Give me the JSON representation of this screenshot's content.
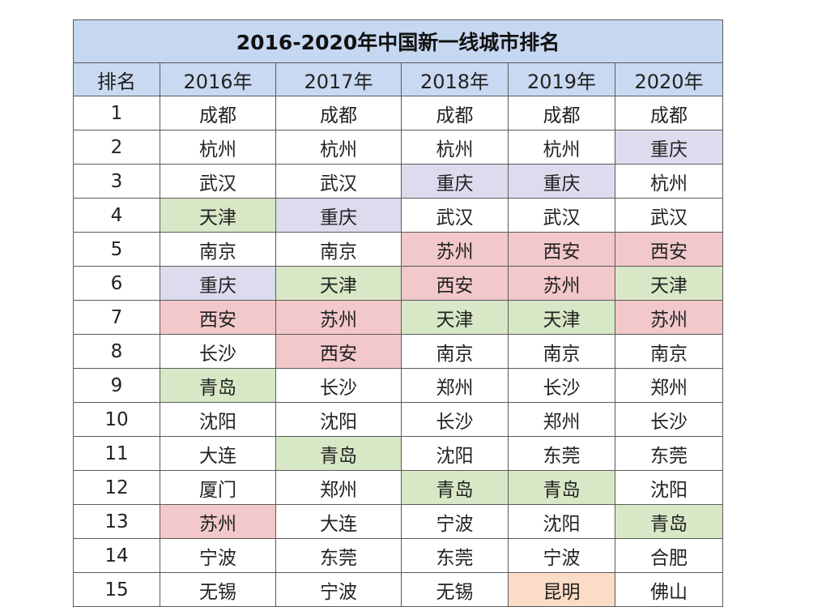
{
  "title": "2016-2020年中国新一线城市排名",
  "headers": [
    "排名",
    "2016年",
    "2017年",
    "2018年",
    "2019年",
    "2020年"
  ],
  "colors": {
    "green": "#d8e8c6",
    "purple": "#dcdcee",
    "red": "#f2c8cb",
    "peach": "#fbdcc6",
    "header_bg": "#c9d9f1",
    "title_bg": "#c6d7f1"
  },
  "rows": [
    {
      "rank": "1",
      "cities": [
        "成都",
        "成都",
        "成都",
        "成都",
        "成都"
      ],
      "hl": [
        "",
        "",
        "",
        "",
        ""
      ]
    },
    {
      "rank": "2",
      "cities": [
        "杭州",
        "杭州",
        "杭州",
        "杭州",
        "重庆"
      ],
      "hl": [
        "",
        "",
        "",
        "",
        "purple"
      ]
    },
    {
      "rank": "3",
      "cities": [
        "武汉",
        "武汉",
        "重庆",
        "重庆",
        "杭州"
      ],
      "hl": [
        "",
        "",
        "purple",
        "purple",
        ""
      ]
    },
    {
      "rank": "4",
      "cities": [
        "天津",
        "重庆",
        "武汉",
        "武汉",
        "武汉"
      ],
      "hl": [
        "green",
        "purple",
        "",
        "",
        ""
      ]
    },
    {
      "rank": "5",
      "cities": [
        "南京",
        "南京",
        "苏州",
        "西安",
        "西安"
      ],
      "hl": [
        "",
        "",
        "red",
        "red",
        "red"
      ]
    },
    {
      "rank": "6",
      "cities": [
        "重庆",
        "天津",
        "西安",
        "苏州",
        "天津"
      ],
      "hl": [
        "purple",
        "green",
        "red",
        "red",
        "green"
      ]
    },
    {
      "rank": "7",
      "cities": [
        "西安",
        "苏州",
        "天津",
        "天津",
        "苏州"
      ],
      "hl": [
        "red",
        "red",
        "green",
        "green",
        "red"
      ]
    },
    {
      "rank": "8",
      "cities": [
        "长沙",
        "西安",
        "南京",
        "南京",
        "南京"
      ],
      "hl": [
        "",
        "red",
        "",
        "",
        ""
      ]
    },
    {
      "rank": "9",
      "cities": [
        "青岛",
        "长沙",
        "郑州",
        "长沙",
        "郑州"
      ],
      "hl": [
        "green",
        "",
        "",
        "",
        ""
      ]
    },
    {
      "rank": "10",
      "cities": [
        "沈阳",
        "沈阳",
        "长沙",
        "郑州",
        "长沙"
      ],
      "hl": [
        "",
        "",
        "",
        "",
        ""
      ]
    },
    {
      "rank": "11",
      "cities": [
        "大连",
        "青岛",
        "沈阳",
        "东莞",
        "东莞"
      ],
      "hl": [
        "",
        "green",
        "",
        "",
        ""
      ]
    },
    {
      "rank": "12",
      "cities": [
        "厦门",
        "郑州",
        "青岛",
        "青岛",
        "沈阳"
      ],
      "hl": [
        "",
        "",
        "green",
        "green",
        ""
      ]
    },
    {
      "rank": "13",
      "cities": [
        "苏州",
        "大连",
        "宁波",
        "沈阳",
        "青岛"
      ],
      "hl": [
        "red",
        "",
        "",
        "",
        "green"
      ]
    },
    {
      "rank": "14",
      "cities": [
        "宁波",
        "东莞",
        "东莞",
        "宁波",
        "合肥"
      ],
      "hl": [
        "",
        "",
        "",
        "",
        ""
      ]
    },
    {
      "rank": "15",
      "cities": [
        "无锡",
        "宁波",
        "无锡",
        "昆明",
        "佛山"
      ],
      "hl": [
        "",
        "",
        "",
        "peach",
        ""
      ]
    }
  ]
}
